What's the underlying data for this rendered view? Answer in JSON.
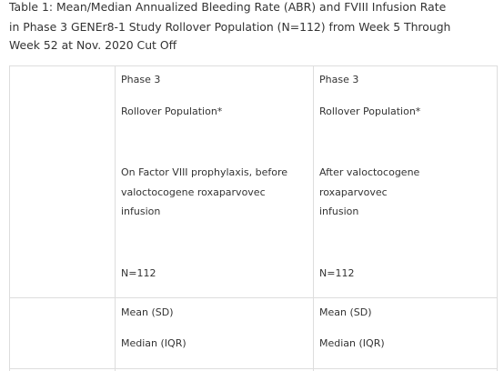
{
  "title": {
    "lines": [
      "Table 1:  Mean/Median Annualized Bleeding Rate (ABR) and FVIII Infusion Rate",
      "in Phase 3 GENEr8-1 Study Rollover Population (N=112) from Week 5 Through",
      "Week 52 at Nov. 2020 Cut Off"
    ]
  },
  "table": {
    "header": [
      {
        "phase": "Phase 3",
        "population": "Rollover Population*",
        "condition": [
          "On Factor VIII prophylaxis, before",
          "valoctocogene roxaparvovec",
          "infusion"
        ],
        "n": "N=112"
      },
      {
        "phase": "Phase 3",
        "population": "Rollover Population*",
        "condition": [
          "After valoctocogene",
          "roxaparvovec",
          "infusion"
        ],
        "n": "N=112"
      }
    ],
    "rows": [
      [
        [
          "Mean (SD)",
          "Median (IQR)"
        ],
        [
          "Mean (SD)",
          "Median (IQR)"
        ]
      ]
    ]
  }
}
